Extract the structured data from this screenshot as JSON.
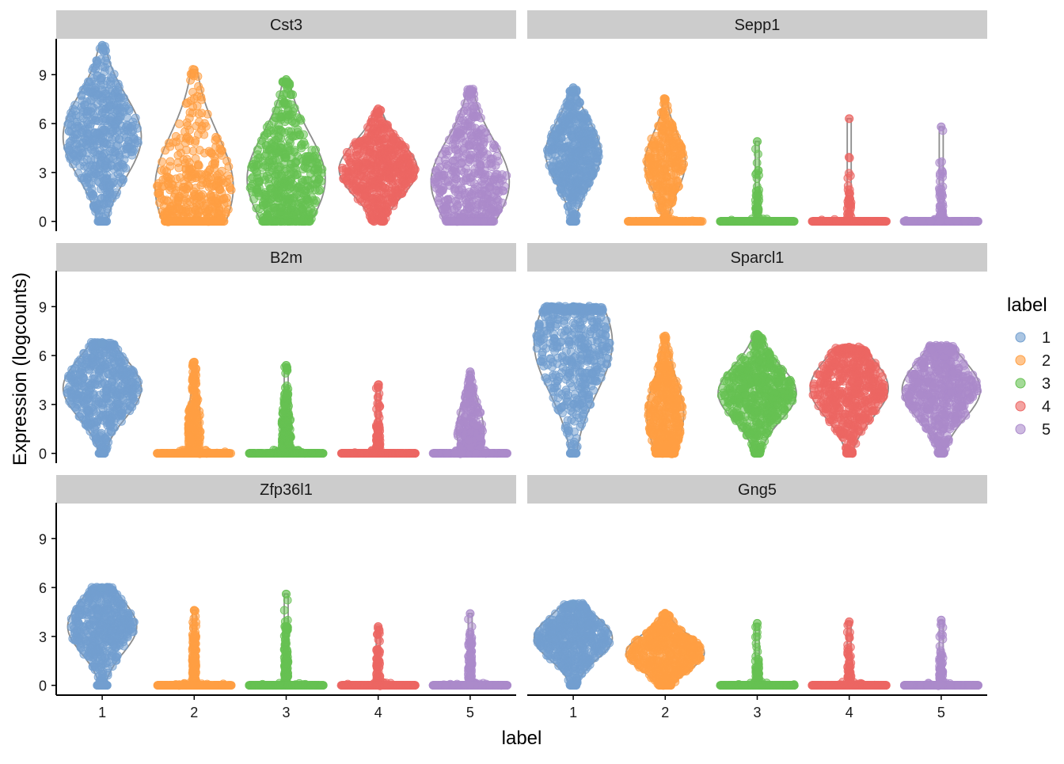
{
  "chart_data": {
    "type": "violin",
    "facet_strip_color": "#cccccc",
    "x_axis": {
      "label": "label",
      "ticks": [
        "1",
        "2",
        "3",
        "4",
        "5"
      ]
    },
    "y_axis": {
      "label": "Expression (logcounts)",
      "ticks": [
        0,
        3,
        6,
        9
      ],
      "ylim": [
        -0.6,
        11.2
      ]
    },
    "legend": {
      "title": "label",
      "position": "right",
      "entries": [
        {
          "label": "1",
          "color": "#729fcf"
        },
        {
          "label": "2",
          "color": "#ff9f43"
        },
        {
          "label": "3",
          "color": "#66c152"
        },
        {
          "label": "4",
          "color": "#ec6663"
        },
        {
          "label": "5",
          "color": "#ab8acb"
        }
      ]
    },
    "panels": [
      {
        "gene": "Cst3",
        "groups": [
          {
            "label": "1",
            "min": 0,
            "max": 10.8,
            "median": 6.4,
            "center": 5.2,
            "width": 0.85,
            "zero_frac": 0.03
          },
          {
            "label": "2",
            "min": 0,
            "max": 9.3,
            "median": 2.3,
            "center": 2.1,
            "width": 0.85,
            "zero_frac": 0.35
          },
          {
            "label": "3",
            "min": 0,
            "max": 8.7,
            "median": 2.7,
            "center": 2.6,
            "width": 0.85,
            "zero_frac": 0.12
          },
          {
            "label": "4",
            "min": 0,
            "max": 6.9,
            "median": 3.2,
            "center": 3.2,
            "width": 0.85,
            "zero_frac": 0.02
          },
          {
            "label": "5",
            "min": 0,
            "max": 8.1,
            "median": 2.5,
            "center": 2.4,
            "width": 0.85,
            "zero_frac": 0.2
          }
        ]
      },
      {
        "gene": "Sepp1",
        "groups": [
          {
            "label": "1",
            "min": 0,
            "max": 8.2,
            "median": 4.3,
            "center": 4.2,
            "width": 0.6,
            "zero_frac": 0.08
          },
          {
            "label": "2",
            "min": 0,
            "max": 7.5,
            "median": 3.2,
            "center": 3.6,
            "width": 0.5,
            "zero_frac": 0.45
          },
          {
            "label": "3",
            "min": 0,
            "max": 4.9,
            "median": 0,
            "center": 0.6,
            "width": 0.08,
            "zero_frac": 0.9
          },
          {
            "label": "4",
            "min": 0,
            "max": 6.3,
            "median": 0,
            "center": 0.8,
            "width": 0.08,
            "zero_frac": 0.92
          },
          {
            "label": "5",
            "min": 0,
            "max": 5.8,
            "median": 0,
            "center": 0.6,
            "width": 0.1,
            "zero_frac": 0.88
          }
        ]
      },
      {
        "gene": "B2m",
        "groups": [
          {
            "label": "1",
            "min": 0,
            "max": 6.8,
            "median": 4.0,
            "center": 4.0,
            "width": 0.85,
            "zero_frac": 0.06
          },
          {
            "label": "2",
            "min": 0,
            "max": 5.6,
            "median": 1.6,
            "center": 1.5,
            "width": 0.3,
            "zero_frac": 0.6
          },
          {
            "label": "3",
            "min": 0,
            "max": 5.4,
            "median": 1.2,
            "center": 1.1,
            "width": 0.28,
            "zero_frac": 0.65
          },
          {
            "label": "4",
            "min": 0,
            "max": 4.2,
            "median": 0,
            "center": 0.8,
            "width": 0.1,
            "zero_frac": 0.85
          },
          {
            "label": "5",
            "min": 0,
            "max": 5.0,
            "median": 1.5,
            "center": 1.4,
            "width": 0.5,
            "zero_frac": 0.55
          }
        ]
      },
      {
        "gene": "Sparcl1",
        "groups": [
          {
            "label": "1",
            "min": 0,
            "max": 9.0,
            "median": 6.3,
            "center": 6.8,
            "width": 0.85,
            "zero_frac": 0.02
          },
          {
            "label": "2",
            "min": 0,
            "max": 7.2,
            "median": 2.7,
            "center": 2.4,
            "width": 0.4,
            "zero_frac": 0.2
          },
          {
            "label": "3",
            "min": 0,
            "max": 7.3,
            "median": 3.7,
            "center": 3.7,
            "width": 0.85,
            "zero_frac": 0.02
          },
          {
            "label": "4",
            "min": 0,
            "max": 6.5,
            "median": 3.8,
            "center": 4.0,
            "width": 0.85,
            "zero_frac": 0.03
          },
          {
            "label": "5",
            "min": 0,
            "max": 6.6,
            "median": 3.7,
            "center": 3.9,
            "width": 0.85,
            "zero_frac": 0.03
          }
        ]
      },
      {
        "gene": "Zfp36l1",
        "groups": [
          {
            "label": "1",
            "min": 0,
            "max": 6.0,
            "median": 3.5,
            "center": 3.6,
            "width": 0.75,
            "zero_frac": 0.1
          },
          {
            "label": "2",
            "min": 0,
            "max": 4.6,
            "median": 0,
            "center": 1.5,
            "width": 0.14,
            "zero_frac": 0.75
          },
          {
            "label": "3",
            "min": 0,
            "max": 5.6,
            "median": 0,
            "center": 1.0,
            "width": 0.1,
            "zero_frac": 0.8
          },
          {
            "label": "4",
            "min": 0,
            "max": 3.6,
            "median": 0,
            "center": 1.0,
            "width": 0.08,
            "zero_frac": 0.88
          },
          {
            "label": "5",
            "min": 0,
            "max": 4.4,
            "median": 0,
            "center": 1.2,
            "width": 0.1,
            "zero_frac": 0.82
          }
        ]
      },
      {
        "gene": "Gng5",
        "groups": [
          {
            "label": "1",
            "min": 0,
            "max": 5.0,
            "median": 2.9,
            "center": 2.9,
            "width": 0.85,
            "zero_frac": 0.06
          },
          {
            "label": "2",
            "min": 0,
            "max": 4.4,
            "median": 2.0,
            "center": 2.0,
            "width": 0.85,
            "zero_frac": 0.08
          },
          {
            "label": "3",
            "min": 0,
            "max": 3.8,
            "median": 0,
            "center": 0.5,
            "width": 0.06,
            "zero_frac": 0.9
          },
          {
            "label": "4",
            "min": 0,
            "max": 3.9,
            "median": 0,
            "center": 0.5,
            "width": 0.06,
            "zero_frac": 0.9
          },
          {
            "label": "5",
            "min": 0,
            "max": 4.0,
            "median": 0,
            "center": 0.6,
            "width": 0.08,
            "zero_frac": 0.88
          }
        ]
      }
    ]
  }
}
